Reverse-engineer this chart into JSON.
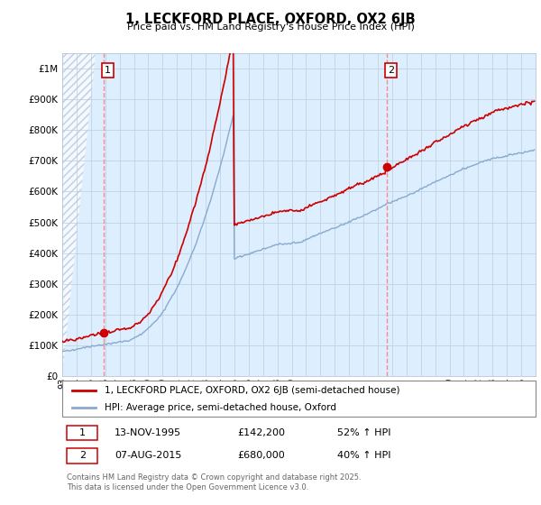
{
  "title": "1, LECKFORD PLACE, OXFORD, OX2 6JB",
  "subtitle": "Price paid vs. HM Land Registry's House Price Index (HPI)",
  "ytick_values": [
    0,
    100000,
    200000,
    300000,
    400000,
    500000,
    600000,
    700000,
    800000,
    900000,
    1000000
  ],
  "ylim": [
    0,
    1050000
  ],
  "xlim_start": 1993.0,
  "xlim_end": 2026.0,
  "purchase1_year": 1995.87,
  "purchase1_price": 142200,
  "purchase2_year": 2015.6,
  "purchase2_price": 680000,
  "line_color_property": "#cc0000",
  "line_color_hpi": "#88aacc",
  "marker_color": "#cc0000",
  "vline_color": "#ff8888",
  "annot_box_edge": "#cc0000",
  "annot_box_face": "#ffffff",
  "annot_text_color": "#000000",
  "legend_label_property": "1, LECKFORD PLACE, OXFORD, OX2 6JB (semi-detached house)",
  "legend_label_hpi": "HPI: Average price, semi-detached house, Oxford",
  "footnote1_label": "1",
  "footnote1_date": "13-NOV-1995",
  "footnote1_price": "£142,200",
  "footnote1_hpi": "52% ↑ HPI",
  "footnote2_label": "2",
  "footnote2_date": "07-AUG-2015",
  "footnote2_price": "£680,000",
  "footnote2_hpi": "40% ↑ HPI",
  "copyright_text": "Contains HM Land Registry data © Crown copyright and database right 2025.\nThis data is licensed under the Open Government Licence v3.0.",
  "background_color": "#ffffff",
  "grid_color": "#bbccdd",
  "chart_bg": "#ddeeff"
}
